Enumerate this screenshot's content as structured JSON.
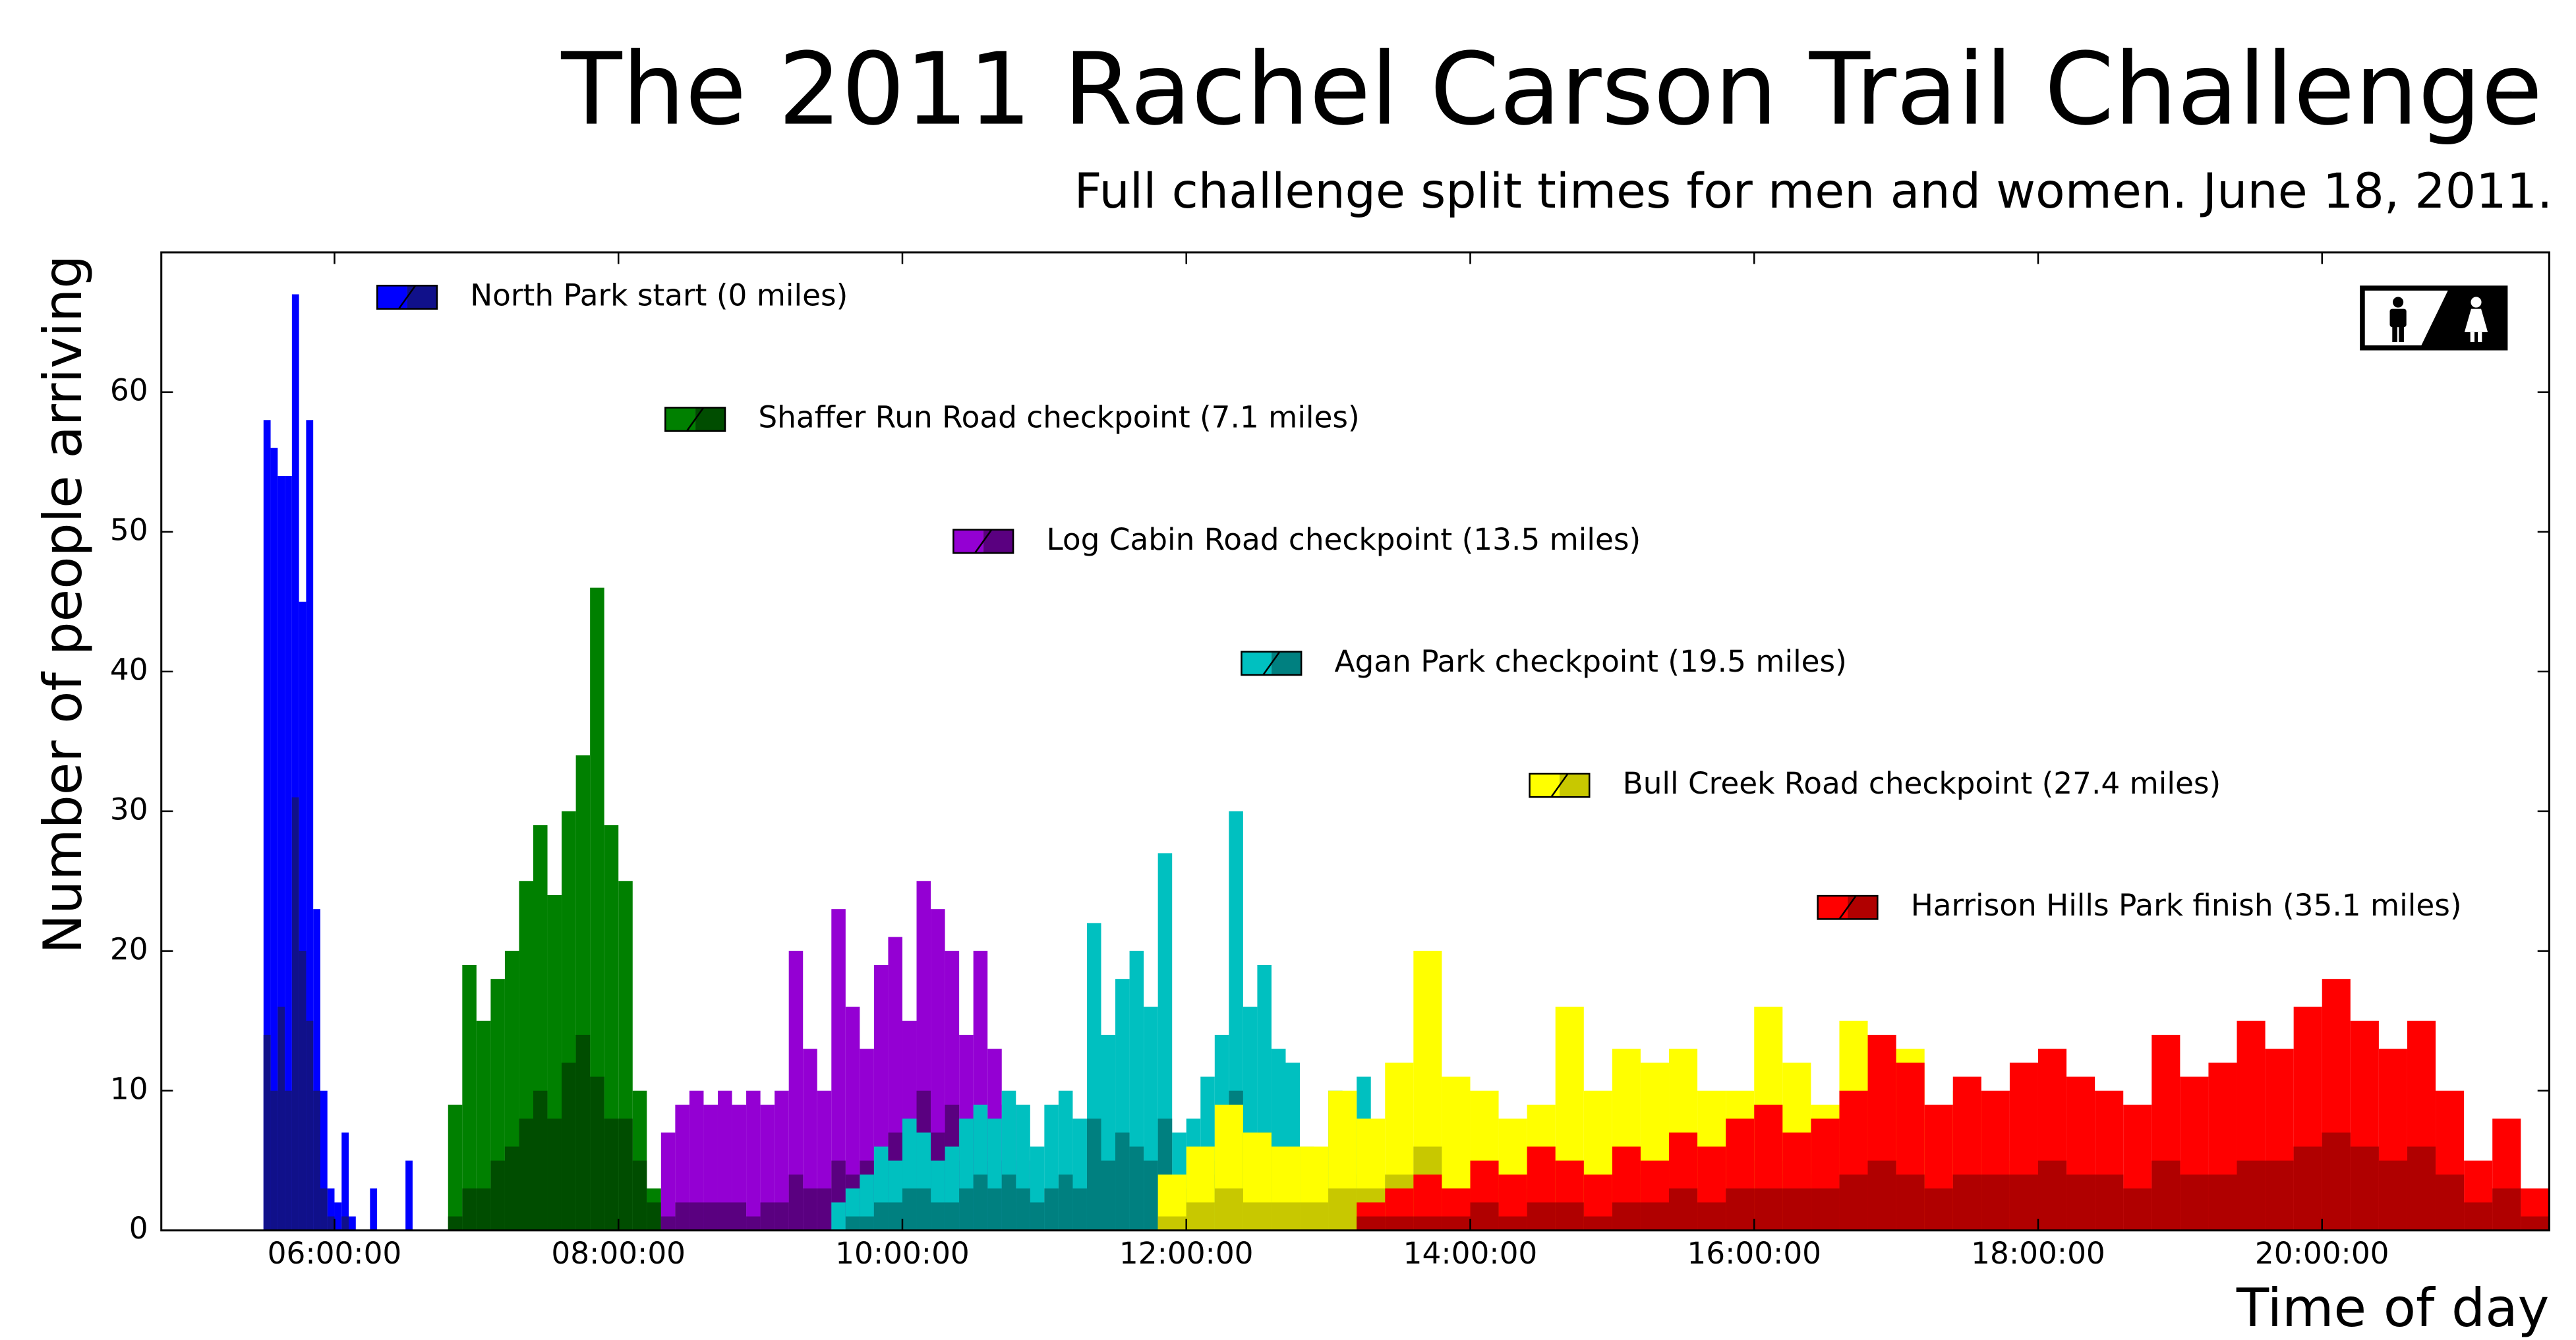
{
  "chart_data": {
    "type": "histogram",
    "title": "The 2011 Rachel Carson Trail Challenge",
    "subtitle": "Full challenge split times for men and women. June 18, 2011.",
    "xlabel": "Time of day",
    "ylabel": "Number of people arriving",
    "xlim": [
      4.78,
      21.6
    ],
    "ylim": [
      0,
      70
    ],
    "xticks": [
      {
        "value": 6,
        "label": "06:00:00"
      },
      {
        "value": 8,
        "label": "08:00:00"
      },
      {
        "value": 10,
        "label": "10:00:00"
      },
      {
        "value": 12,
        "label": "12:00:00"
      },
      {
        "value": 14,
        "label": "14:00:00"
      },
      {
        "value": 16,
        "label": "16:00:00"
      },
      {
        "value": 18,
        "label": "18:00:00"
      },
      {
        "value": 20,
        "label": "20:00:00"
      }
    ],
    "yticks": [
      0,
      10,
      20,
      30,
      40,
      50,
      60
    ],
    "series": [
      {
        "name": "North Park start (0 miles)",
        "color": "#0000ff",
        "women_color": "#10108a",
        "bins": [
          5.5,
          5.55,
          5.6,
          5.65,
          5.7,
          5.75,
          5.8,
          5.85,
          5.9,
          5.95,
          6,
          6.05,
          6.1,
          6.15,
          6.2,
          6.25,
          6.3,
          6.35,
          6.4,
          6.45,
          6.5,
          6.55
        ],
        "values": [
          58,
          56,
          54,
          54,
          67,
          45,
          58,
          23,
          10,
          3,
          2,
          7,
          1,
          0,
          0,
          3,
          0,
          0,
          0,
          0,
          5
        ],
        "women_values": [
          14,
          10,
          16,
          10,
          31,
          20,
          15,
          10,
          3,
          1,
          0,
          1,
          0,
          0,
          0,
          0,
          0,
          0,
          0,
          0,
          0
        ]
      },
      {
        "name": "Shaffer Run Road checkpoint (7.1 miles)",
        "color": "#008000",
        "women_color": "#004d00",
        "bins": [
          6.8,
          6.9,
          7,
          7.1,
          7.2,
          7.3,
          7.4,
          7.5,
          7.6,
          7.7,
          7.8,
          7.9,
          8,
          8.1,
          8.2,
          8.3
        ],
        "values": [
          9,
          19,
          15,
          18,
          20,
          25,
          29,
          24,
          30,
          34,
          46,
          29,
          25,
          10,
          3
        ],
        "women_values": [
          1,
          3,
          3,
          5,
          6,
          8,
          10,
          8,
          12,
          14,
          11,
          8,
          8,
          5,
          2
        ]
      },
      {
        "name": "Log Cabin Road checkpoint (13.5 miles)",
        "color": "#9400d3",
        "women_color": "#5a0080",
        "bins": [
          8.3,
          8.4,
          8.5,
          8.6,
          8.7,
          8.8,
          8.9,
          9,
          9.1,
          9.2,
          9.3,
          9.4,
          9.5,
          9.6,
          9.7,
          9.8,
          9.9,
          10,
          10.1,
          10.2,
          10.3,
          10.4,
          10.5,
          10.6,
          10.7,
          10.8,
          10.9
        ],
        "values": [
          7,
          9,
          10,
          9,
          10,
          9,
          10,
          9,
          10,
          20,
          13,
          10,
          23,
          16,
          13,
          19,
          21,
          15,
          25,
          23,
          20,
          14,
          20,
          13,
          9,
          5
        ],
        "women_values": [
          1,
          2,
          2,
          2,
          2,
          2,
          1,
          2,
          2,
          4,
          3,
          3,
          5,
          4,
          5,
          6,
          7,
          4,
          10,
          7,
          9,
          5,
          8,
          5,
          3,
          2
        ]
      },
      {
        "name": "Agan Park checkpoint (19.5 miles)",
        "color": "#00c0c0",
        "women_color": "#008080",
        "bins": [
          9.5,
          9.6,
          9.7,
          9.8,
          9.9,
          10,
          10.1,
          10.2,
          10.3,
          10.4,
          10.5,
          10.6,
          10.7,
          10.8,
          10.9,
          11,
          11.1,
          11.2,
          11.3,
          11.4,
          11.5,
          11.6,
          11.7,
          11.8,
          11.9,
          12,
          12.1,
          12.2,
          12.3,
          12.4,
          12.5,
          12.6,
          12.7,
          12.8,
          12.9,
          13,
          13.1,
          13.2,
          13.3,
          13.4,
          13.5
        ],
        "values": [
          2,
          3,
          4,
          6,
          5,
          8,
          7,
          5,
          6,
          8,
          9,
          8,
          10,
          9,
          6,
          9,
          10,
          8,
          22,
          14,
          18,
          20,
          16,
          27,
          7,
          8,
          11,
          14,
          30,
          16,
          19,
          13,
          12,
          6,
          5,
          10,
          8,
          11,
          3,
          4
        ],
        "women_values": [
          0,
          1,
          1,
          2,
          2,
          3,
          3,
          2,
          2,
          3,
          4,
          3,
          4,
          3,
          2,
          3,
          4,
          3,
          8,
          5,
          7,
          6,
          5,
          8,
          3,
          3,
          4,
          5,
          10,
          6,
          7,
          4,
          4,
          2,
          2,
          3,
          3,
          4,
          1,
          1
        ]
      },
      {
        "name": "Bull Creek Road checkpoint (27.4 miles)",
        "color": "#ffff00",
        "women_color": "#c8c800",
        "bins": [
          11.8,
          12,
          12.2,
          12.4,
          12.6,
          12.8,
          13,
          13.2,
          13.4,
          13.6,
          13.8,
          14,
          14.2,
          14.4,
          14.6,
          14.8,
          15,
          15.2,
          15.4,
          15.6,
          15.8,
          16,
          16.2,
          16.4,
          16.6,
          16.8,
          17,
          17.2,
          17.4,
          17.6,
          17.8
        ],
        "values": [
          4,
          6,
          9,
          7,
          6,
          6,
          10,
          8,
          12,
          20,
          11,
          10,
          8,
          9,
          16,
          10,
          13,
          12,
          13,
          10,
          10,
          16,
          12,
          9,
          15,
          10,
          13,
          8,
          10,
          5
        ],
        "women_values": [
          1,
          2,
          3,
          2,
          2,
          2,
          3,
          3,
          4,
          6,
          3,
          3,
          3,
          3,
          5,
          3,
          4,
          4,
          4,
          3,
          3,
          5,
          4,
          3,
          5,
          3,
          4,
          3,
          3,
          2
        ]
      },
      {
        "name": "Harrison Hills Park finish (35.1 miles)",
        "color": "#ff0000",
        "women_color": "#b00000",
        "bins": [
          13.2,
          13.4,
          13.6,
          13.8,
          14,
          14.2,
          14.4,
          14.6,
          14.8,
          15,
          15.2,
          15.4,
          15.6,
          15.8,
          16,
          16.2,
          16.4,
          16.6,
          16.8,
          17,
          17.2,
          17.4,
          17.6,
          17.8,
          18,
          18.2,
          18.4,
          18.6,
          18.8,
          19,
          19.2,
          19.4,
          19.6,
          19.8,
          20,
          20.2,
          20.4,
          20.6,
          20.8,
          21,
          21.2,
          21.4,
          21.6
        ],
        "values": [
          2,
          3,
          4,
          3,
          5,
          4,
          6,
          5,
          4,
          6,
          5,
          7,
          6,
          8,
          9,
          7,
          8,
          10,
          14,
          12,
          9,
          11,
          10,
          12,
          13,
          11,
          10,
          9,
          14,
          11,
          12,
          15,
          13,
          16,
          18,
          15,
          13,
          15,
          10,
          5,
          8,
          3
        ],
        "women_values": [
          1,
          1,
          1,
          1,
          2,
          1,
          2,
          2,
          1,
          2,
          2,
          3,
          2,
          3,
          3,
          3,
          3,
          4,
          5,
          4,
          3,
          4,
          4,
          4,
          5,
          4,
          4,
          3,
          5,
          4,
          4,
          5,
          5,
          6,
          7,
          6,
          5,
          6,
          4,
          2,
          3,
          1
        ]
      }
    ]
  }
}
